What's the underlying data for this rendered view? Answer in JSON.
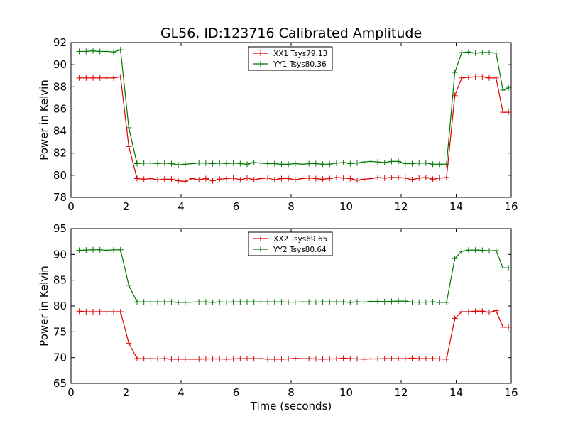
{
  "figure": {
    "title": "GL56, ID:123716 Calibrated Amplitude"
  },
  "colors": {
    "red_series": "#dd0000",
    "green_series": "#007700",
    "axes": "#000000",
    "background": "#ffffff"
  },
  "chart_data": [
    {
      "type": "line",
      "title": "GL56, ID:123716 Calibrated Amplitude",
      "xlabel": "",
      "ylabel": "Power in Kelvin",
      "xlim": [
        0,
        16
      ],
      "ylim": [
        78,
        92
      ],
      "xticks": [
        0,
        2,
        4,
        6,
        8,
        10,
        12,
        14,
        16
      ],
      "yticks": [
        78,
        80,
        82,
        84,
        86,
        88,
        90,
        92
      ],
      "grid": false,
      "legend_position": "top-center",
      "marker": "plus",
      "x": [
        0.3,
        0.55,
        0.8,
        1.05,
        1.3,
        1.55,
        1.8,
        2.1,
        2.4,
        2.65,
        2.9,
        3.15,
        3.4,
        3.65,
        3.9,
        4.15,
        4.4,
        4.65,
        4.9,
        5.15,
        5.4,
        5.65,
        5.9,
        6.15,
        6.4,
        6.65,
        6.9,
        7.15,
        7.4,
        7.65,
        7.9,
        8.15,
        8.4,
        8.65,
        8.9,
        9.15,
        9.4,
        9.65,
        9.9,
        10.15,
        10.4,
        10.65,
        10.9,
        11.15,
        11.4,
        11.65,
        11.9,
        12.15,
        12.4,
        12.65,
        12.9,
        13.15,
        13.4,
        13.65,
        13.95,
        14.2,
        14.45,
        14.7,
        14.95,
        15.2,
        15.45,
        15.7,
        15.9
      ],
      "series": [
        {
          "name": "XX1 Tsys79.13",
          "color": "#dd0000",
          "values": [
            88.8,
            88.8,
            88.8,
            88.8,
            88.8,
            88.8,
            88.9,
            82.6,
            79.7,
            79.65,
            79.7,
            79.6,
            79.65,
            79.65,
            79.5,
            79.45,
            79.7,
            79.6,
            79.7,
            79.5,
            79.65,
            79.7,
            79.75,
            79.6,
            79.75,
            79.6,
            79.7,
            79.75,
            79.6,
            79.7,
            79.7,
            79.6,
            79.7,
            79.75,
            79.7,
            79.65,
            79.7,
            79.8,
            79.75,
            79.7,
            79.55,
            79.65,
            79.7,
            79.8,
            79.75,
            79.8,
            79.8,
            79.75,
            79.6,
            79.75,
            79.8,
            79.65,
            79.75,
            79.8,
            87.2,
            88.8,
            88.85,
            88.9,
            88.9,
            88.8,
            88.8,
            85.7,
            85.7
          ]
        },
        {
          "name": "YY1 Tsys80.36",
          "color": "#007700",
          "values": [
            91.2,
            91.2,
            91.25,
            91.2,
            91.2,
            91.15,
            91.35,
            84.3,
            81.05,
            81.1,
            81.1,
            81.05,
            81.1,
            81.05,
            80.95,
            81.0,
            81.05,
            81.1,
            81.1,
            81.05,
            81.1,
            81.05,
            81.1,
            81.05,
            81.0,
            81.15,
            81.1,
            81.05,
            81.05,
            81.0,
            81.0,
            81.05,
            81.0,
            81.05,
            81.05,
            81.0,
            81.0,
            81.1,
            81.15,
            81.05,
            81.1,
            81.2,
            81.25,
            81.2,
            81.15,
            81.25,
            81.25,
            81.05,
            81.05,
            81.1,
            81.1,
            81.0,
            81.0,
            81.0,
            89.3,
            91.1,
            91.15,
            91.05,
            91.1,
            91.1,
            91.05,
            87.7,
            87.9
          ]
        }
      ]
    },
    {
      "type": "line",
      "title": "",
      "xlabel": "Time (seconds)",
      "ylabel": "Power in Kelvin",
      "xlim": [
        0,
        16
      ],
      "ylim": [
        65,
        95
      ],
      "xticks": [
        0,
        2,
        4,
        6,
        8,
        10,
        12,
        14,
        16
      ],
      "yticks": [
        65,
        70,
        75,
        80,
        85,
        90,
        95
      ],
      "grid": false,
      "legend_position": "top-center",
      "marker": "plus",
      "x": [
        0.3,
        0.55,
        0.8,
        1.05,
        1.3,
        1.55,
        1.8,
        2.1,
        2.4,
        2.65,
        2.9,
        3.15,
        3.4,
        3.65,
        3.9,
        4.15,
        4.4,
        4.65,
        4.9,
        5.15,
        5.4,
        5.65,
        5.9,
        6.15,
        6.4,
        6.65,
        6.9,
        7.15,
        7.4,
        7.65,
        7.9,
        8.15,
        8.4,
        8.65,
        8.9,
        9.15,
        9.4,
        9.65,
        9.9,
        10.15,
        10.4,
        10.65,
        10.9,
        11.15,
        11.4,
        11.65,
        11.9,
        12.15,
        12.4,
        12.65,
        12.9,
        13.15,
        13.4,
        13.65,
        13.95,
        14.2,
        14.45,
        14.7,
        14.95,
        15.2,
        15.45,
        15.7,
        15.9
      ],
      "series": [
        {
          "name": "XX2 Tsys69.65",
          "color": "#dd0000",
          "values": [
            79.0,
            78.9,
            78.9,
            78.9,
            78.9,
            78.9,
            78.9,
            72.8,
            69.8,
            69.8,
            69.8,
            69.75,
            69.8,
            69.7,
            69.7,
            69.7,
            69.7,
            69.7,
            69.75,
            69.75,
            69.75,
            69.7,
            69.75,
            69.8,
            69.8,
            69.8,
            69.8,
            69.7,
            69.7,
            69.7,
            69.75,
            69.85,
            69.8,
            69.8,
            69.75,
            69.7,
            69.75,
            69.75,
            69.9,
            69.8,
            69.75,
            69.7,
            69.75,
            69.75,
            69.8,
            69.8,
            69.8,
            69.8,
            69.9,
            69.8,
            69.8,
            69.8,
            69.75,
            69.7,
            77.6,
            78.9,
            78.9,
            79.0,
            79.0,
            78.8,
            79.1,
            75.9,
            75.9
          ]
        },
        {
          "name": "YY2 Tsys80.64",
          "color": "#007700",
          "values": [
            90.8,
            90.85,
            90.9,
            90.9,
            90.8,
            90.9,
            90.9,
            84.0,
            80.8,
            80.8,
            80.8,
            80.8,
            80.8,
            80.8,
            80.7,
            80.7,
            80.75,
            80.8,
            80.8,
            80.7,
            80.8,
            80.75,
            80.8,
            80.8,
            80.8,
            80.8,
            80.8,
            80.8,
            80.8,
            80.8,
            80.75,
            80.75,
            80.8,
            80.8,
            80.75,
            80.8,
            80.8,
            80.8,
            80.8,
            80.7,
            80.8,
            80.75,
            80.9,
            80.9,
            80.85,
            80.9,
            80.95,
            80.95,
            80.75,
            80.75,
            80.75,
            80.8,
            80.7,
            80.7,
            89.2,
            90.6,
            90.85,
            90.85,
            90.8,
            90.7,
            90.75,
            87.4,
            87.4
          ]
        }
      ]
    }
  ]
}
